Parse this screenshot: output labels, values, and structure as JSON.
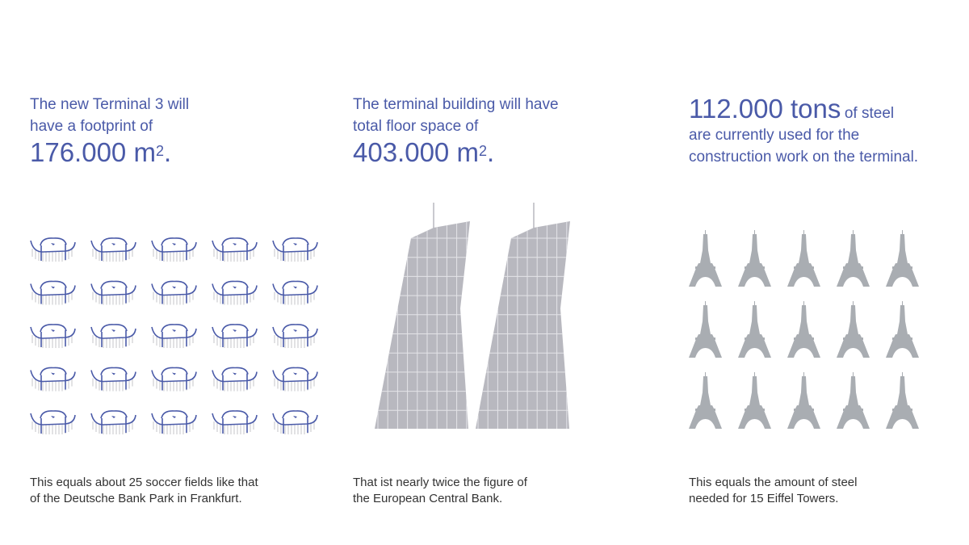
{
  "colors": {
    "accent": "#4a5aa8",
    "gray": "#a9adb2",
    "building": "#b8b8bf",
    "text": "#333333"
  },
  "panels": [
    {
      "intro_line1": "The new Terminal 3 will",
      "intro_line2": "have a footprint of",
      "figure": "176.000 m",
      "sup": "2",
      "suffix": ".",
      "foot_line1": "This equals about 25 soccer fields like that",
      "foot_line2": "of the Deutsche Bank Park in Frankfurt.",
      "icon": "stadium-icon",
      "icon_count": 25
    },
    {
      "intro_line1": "The terminal building will have",
      "intro_line2": "total floor space of",
      "figure": "403.000 m",
      "sup": "2",
      "suffix": ".",
      "foot_line1": "That ist nearly twice the figure of",
      "foot_line2": "the European Central Bank.",
      "icon": "skyscraper-icon",
      "icon_count": 2
    },
    {
      "figure": "112.000 tons",
      "figure_tail": "of steel",
      "intro_line1": "are currently used for the",
      "intro_line2": "construction work on the terminal.",
      "foot_line1": "This equals the amount of steel",
      "foot_line2": "needed for 15 Eiffel Towers.",
      "icon": "eiffel-tower-icon",
      "icon_count": 15
    }
  ]
}
